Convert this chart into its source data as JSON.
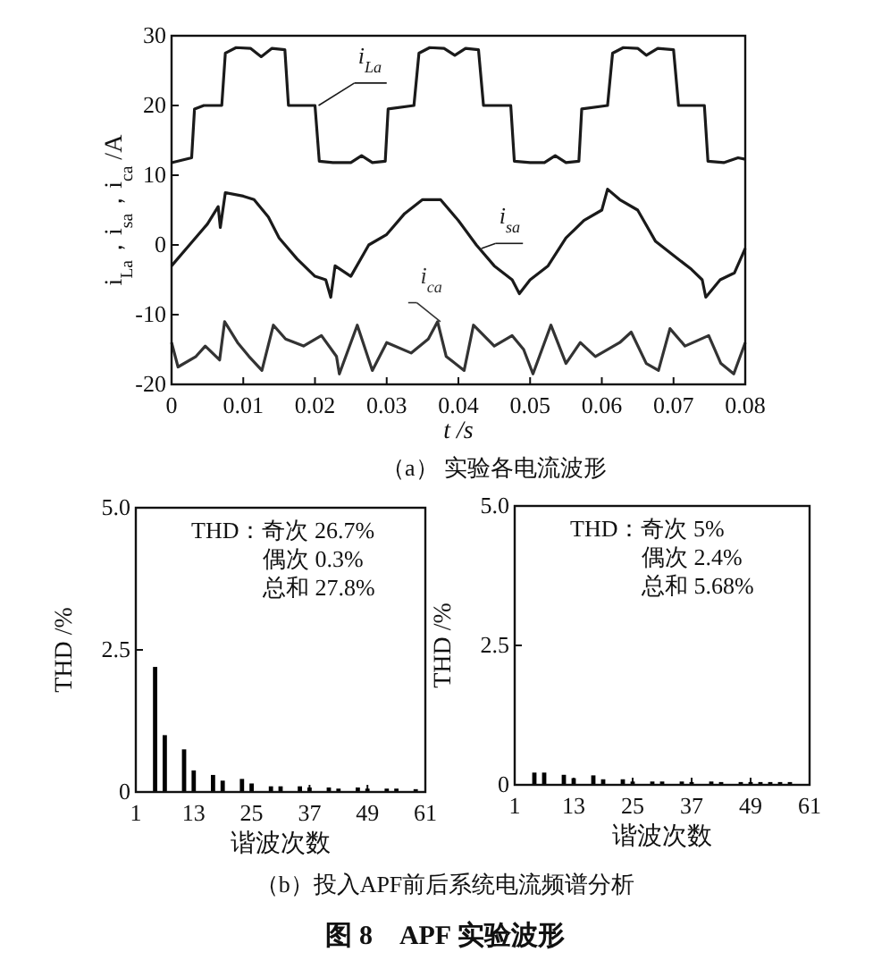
{
  "chart_data": [
    {
      "type": "line",
      "title": "（a） 实验各电流波形",
      "xlabel": "t /s",
      "ylabel": "i$_{La}$，i$_{sa}$，i$_{ca}$ /A",
      "xlim": [
        0,
        0.08
      ],
      "ylim": [
        -20,
        30
      ],
      "xticks": [
        0,
        0.01,
        0.02,
        0.03,
        0.04,
        0.05,
        0.06,
        0.07,
        0.08
      ],
      "yticks": [
        -20,
        -10,
        0,
        10,
        20,
        30
      ],
      "legend": false,
      "series": [
        {
          "name": "i$_{La}$",
          "color": "#1a1a1a",
          "x": [
            0,
            0.0028,
            0.0032,
            0.0045,
            0.007,
            0.0075,
            0.009,
            0.011,
            0.0125,
            0.014,
            0.0158,
            0.0163,
            0.02,
            0.0206,
            0.0225,
            0.025,
            0.0265,
            0.028,
            0.0298,
            0.0302,
            0.0338,
            0.0345,
            0.036,
            0.038,
            0.0395,
            0.041,
            0.0428,
            0.0435,
            0.0473,
            0.0478,
            0.05,
            0.052,
            0.0535,
            0.055,
            0.0568,
            0.0572,
            0.0608,
            0.0615,
            0.063,
            0.065,
            0.0662,
            0.0678,
            0.07,
            0.0707,
            0.0743,
            0.0748,
            0.077,
            0.079,
            0.08
          ],
          "values": [
            11.8,
            12.5,
            19.5,
            20,
            20,
            27.5,
            28.3,
            28.2,
            27,
            28.2,
            28,
            20,
            20,
            12,
            11.8,
            11.8,
            12.8,
            11.8,
            12,
            19.5,
            20,
            27.5,
            28.3,
            28.2,
            27.2,
            28.2,
            28,
            20,
            20,
            12,
            11.8,
            11.8,
            12.8,
            11.8,
            12,
            19.5,
            20,
            27.5,
            28.3,
            28.2,
            27.2,
            28.2,
            28,
            20,
            20,
            12,
            11.8,
            12.5,
            12.3
          ]
        },
        {
          "name": "i$_{sa}$",
          "color": "#1a1a1a",
          "x": [
            0,
            0.0025,
            0.005,
            0.0065,
            0.0068,
            0.0075,
            0.01,
            0.0115,
            0.0135,
            0.015,
            0.0175,
            0.02,
            0.0215,
            0.0222,
            0.0228,
            0.025,
            0.0275,
            0.03,
            0.0325,
            0.035,
            0.0375,
            0.04,
            0.0425,
            0.045,
            0.0475,
            0.0485,
            0.05,
            0.0525,
            0.055,
            0.0575,
            0.06,
            0.0608,
            0.0625,
            0.065,
            0.0675,
            0.07,
            0.0725,
            0.074,
            0.0745,
            0.0765,
            0.0785,
            0.08
          ],
          "values": [
            -3,
            0,
            3,
            5.5,
            2.5,
            7.5,
            7,
            6.5,
            4,
            1,
            -2,
            -4.5,
            -5,
            -7.5,
            -3,
            -4.5,
            0,
            1.5,
            4.5,
            6.5,
            6.5,
            3.5,
            0,
            -3,
            -5,
            -7,
            -5,
            -3,
            1,
            3.5,
            5,
            8,
            6.5,
            5,
            0.5,
            -1.5,
            -3.5,
            -5,
            -7.5,
            -5,
            -4,
            -0.5
          ]
        },
        {
          "name": "i$_{ca}$",
          "color": "#333333",
          "x": [
            0,
            0.0009,
            0.0034,
            0.0047,
            0.0067,
            0.0074,
            0.0092,
            0.0108,
            0.0126,
            0.0142,
            0.0159,
            0.0184,
            0.0209,
            0.023,
            0.0234,
            0.0259,
            0.028,
            0.03,
            0.0334,
            0.0358,
            0.0371,
            0.0383,
            0.0408,
            0.0421,
            0.045,
            0.0475,
            0.0491,
            0.0504,
            0.0529,
            0.055,
            0.057,
            0.0591,
            0.0625,
            0.0641,
            0.0662,
            0.0679,
            0.0695,
            0.0716,
            0.0749,
            0.0766,
            0.0784,
            0.08
          ],
          "values": [
            -14,
            -17.5,
            -16,
            -14.5,
            -16.5,
            -11,
            -14,
            -16,
            -18,
            -11.5,
            -13.5,
            -14.5,
            -13,
            -16,
            -18.5,
            -11.5,
            -18,
            -14,
            -15.5,
            -13.5,
            -11,
            -16,
            -18,
            -11.5,
            -14.5,
            -13,
            -15,
            -18.5,
            -11.5,
            -17,
            -14,
            -16,
            -14,
            -12.5,
            -17,
            -18,
            -12,
            -14.5,
            -13,
            -17,
            -18.5,
            -14
          ]
        }
      ]
    },
    {
      "type": "bar",
      "xlabel": "谐波次数",
      "ylabel": "THD /%",
      "title": "（b）投入APF前后系统电流频谱分析",
      "xlim": [
        1,
        61
      ],
      "ylim": [
        0,
        5
      ],
      "xticks": [
        1,
        13,
        25,
        37,
        49,
        61
      ],
      "yticks": [
        0,
        2.5,
        {
          "value": 5,
          "label": "5.0"
        }
      ],
      "color": "#000000",
      "annotations": [
        "THD：奇次 26.7%",
        "偶次 0.3%",
        "总和 27.8%"
      ],
      "x": [
        5,
        7,
        11,
        13,
        17,
        19,
        23,
        25,
        29,
        31,
        35,
        37,
        41,
        43,
        47,
        49,
        53,
        55,
        59
      ],
      "values": [
        2.2,
        1.0,
        0.75,
        0.38,
        0.3,
        0.2,
        0.23,
        0.15,
        0.1,
        0.1,
        0.1,
        0.08,
        0.08,
        0.06,
        0.08,
        0.06,
        0.06,
        0.06,
        0.05
      ]
    },
    {
      "type": "bar",
      "xlabel": "谐波次数",
      "ylabel": "THD /%",
      "xlim": [
        1,
        61
      ],
      "ylim": [
        0,
        5
      ],
      "xticks": [
        1,
        13,
        25,
        37,
        49,
        61
      ],
      "yticks": [
        0,
        2.5,
        {
          "value": 5,
          "label": "5.0"
        }
      ],
      "color": "#000000",
      "annotations": [
        "THD：奇次 5%",
        "偶次 2.4%",
        "总和 5.68%",
        "图 8　APF 实验波形"
      ],
      "x": [
        5,
        7,
        11,
        13,
        17,
        19,
        23,
        25,
        29,
        31,
        35,
        37,
        41,
        43,
        47,
        49,
        51,
        53,
        55,
        57
      ],
      "values": [
        0.22,
        0.22,
        0.18,
        0.12,
        0.17,
        0.1,
        0.1,
        0.06,
        0.06,
        0.06,
        0.06,
        0.05,
        0.06,
        0.05,
        0.05,
        0.05,
        0.05,
        0.05,
        0.05,
        0.05
      ]
    }
  ]
}
